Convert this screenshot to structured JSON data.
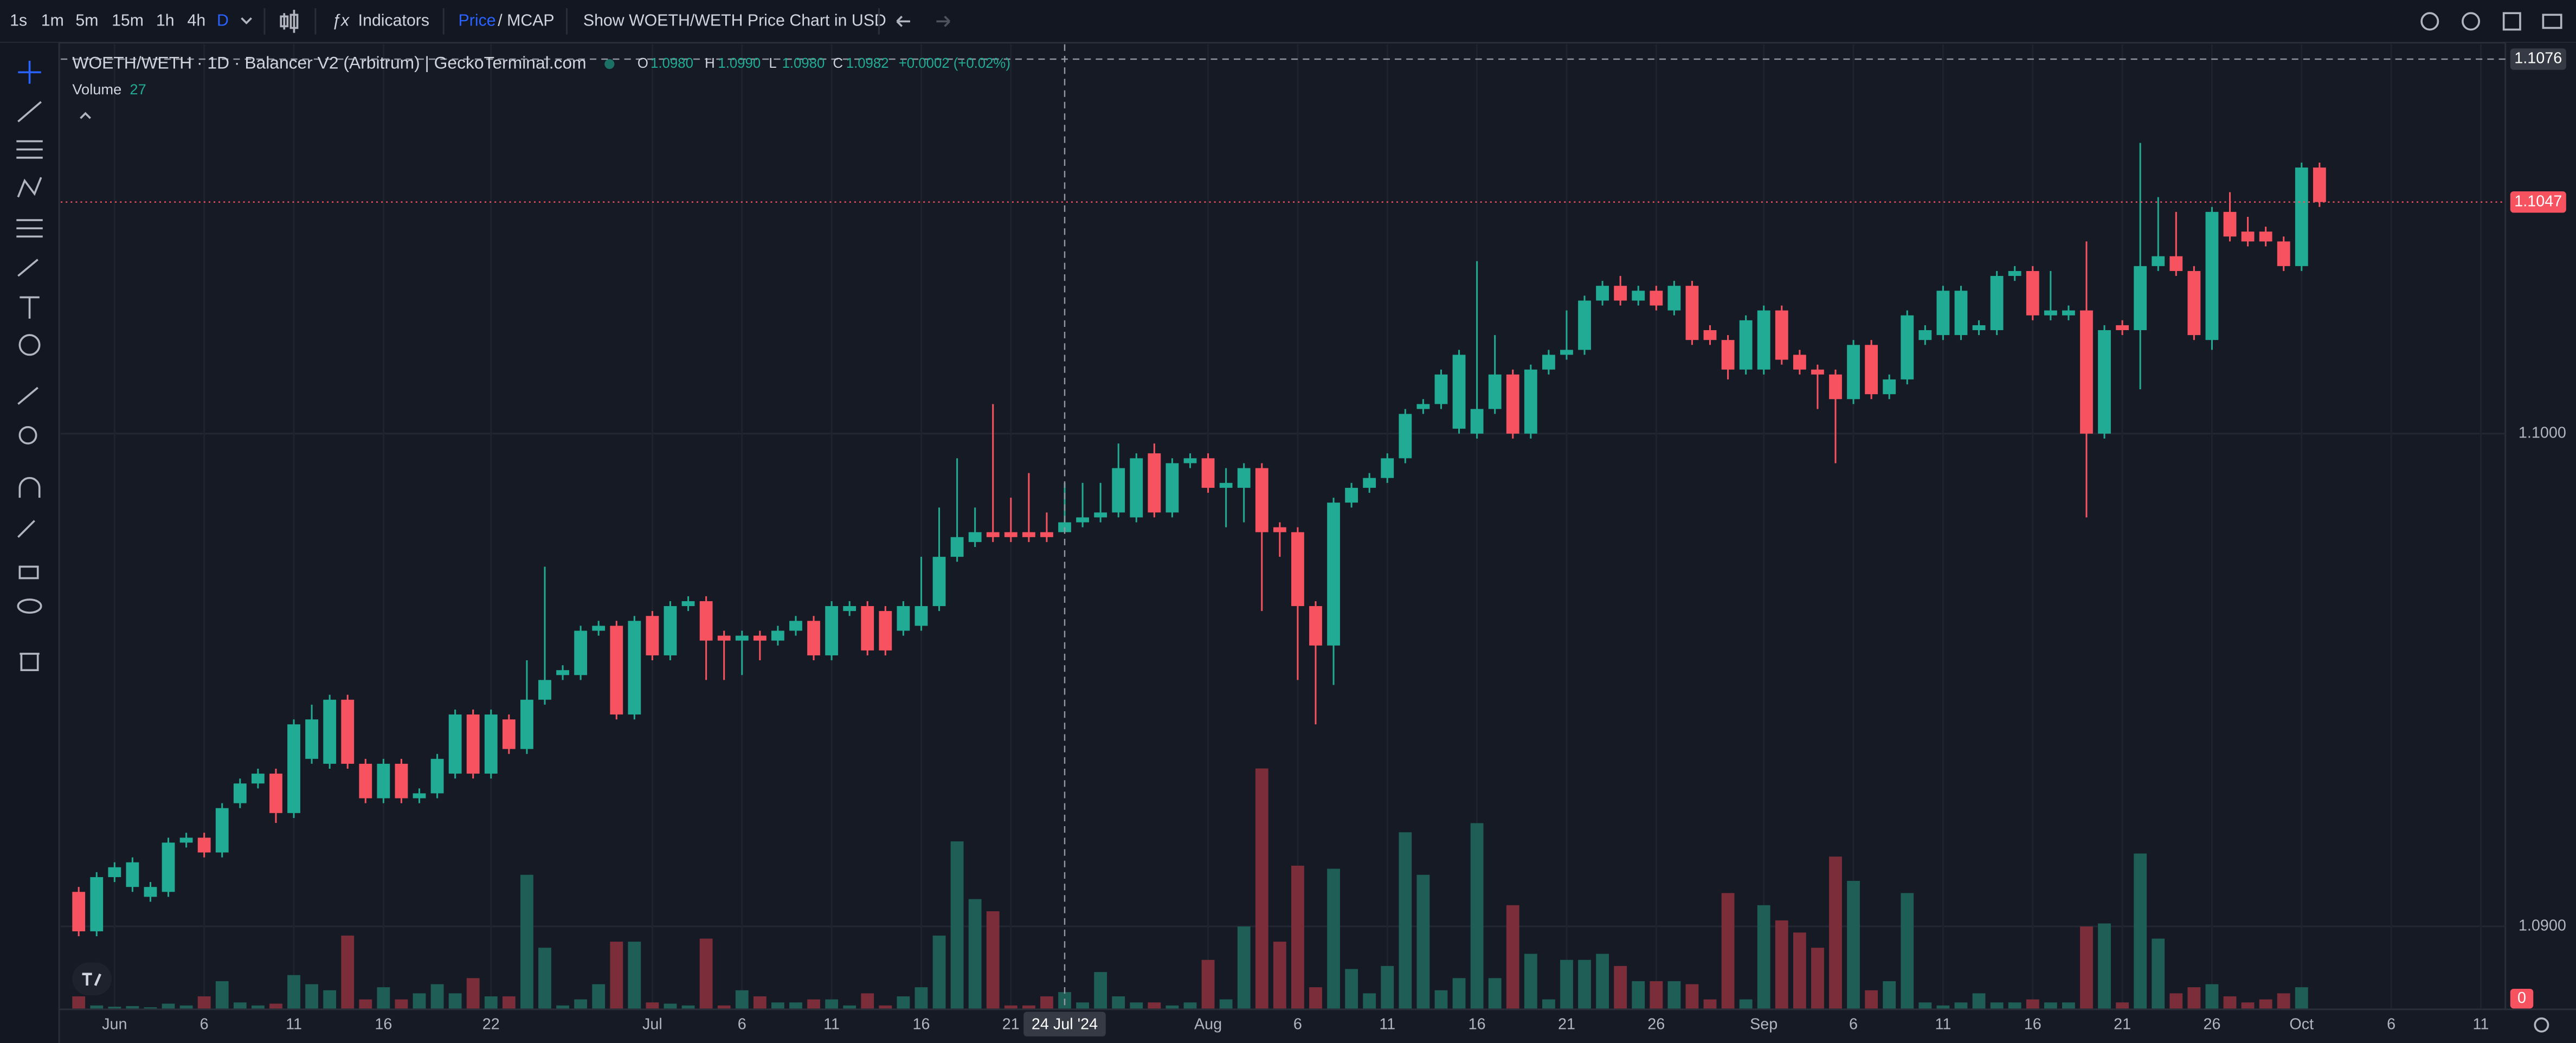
{
  "toolbar": {
    "intervals": [
      "1s",
      "1m",
      "5m",
      "15m",
      "1h",
      "4h",
      "D"
    ],
    "indicators": "Indicators",
    "price_mode": [
      "Price",
      "/ MCAP"
    ],
    "usd_toggle": "Show WOETH/WETH Price Chart in USD"
  },
  "chart_data": {
    "type": "candlestick",
    "title": "WOETH/WETH · 1D · Balancer V2 (Arbitrum) | GeckoTerminal.com",
    "volume_name": "Volume",
    "up_color": "#22ab94",
    "down_color": "#f7525f",
    "volume_up_color": "#1e5e57",
    "volume_down_color": "#7b2e39",
    "grid": true,
    "x": [
      "2024-05-30",
      "2024-05-31",
      "2024-06-01",
      "2024-06-02",
      "2024-06-03",
      "2024-06-04",
      "2024-06-05",
      "2024-06-06",
      "2024-06-07",
      "2024-06-08",
      "2024-06-09",
      "2024-06-10",
      "2024-06-11",
      "2024-06-12",
      "2024-06-13",
      "2024-06-14",
      "2024-06-15",
      "2024-06-16",
      "2024-06-17",
      "2024-06-18",
      "2024-06-19",
      "2024-06-20",
      "2024-06-21",
      "2024-06-22",
      "2024-06-23",
      "2024-06-24",
      "2024-06-25",
      "2024-06-26",
      "2024-06-27",
      "2024-06-28",
      "2024-06-29",
      "2024-06-30",
      "2024-07-01",
      "2024-07-02",
      "2024-07-03",
      "2024-07-04",
      "2024-07-05",
      "2024-07-06",
      "2024-07-07",
      "2024-07-08",
      "2024-07-09",
      "2024-07-10",
      "2024-07-11",
      "2024-07-12",
      "2024-07-13",
      "2024-07-14",
      "2024-07-15",
      "2024-07-16",
      "2024-07-17",
      "2024-07-18",
      "2024-07-19",
      "2024-07-20",
      "2024-07-21",
      "2024-07-22",
      "2024-07-23",
      "2024-07-24",
      "2024-07-25",
      "2024-07-26",
      "2024-07-27",
      "2024-07-28",
      "2024-07-29",
      "2024-07-30",
      "2024-07-31",
      "2024-08-01",
      "2024-08-02",
      "2024-08-03",
      "2024-08-04",
      "2024-08-05",
      "2024-08-06",
      "2024-08-07",
      "2024-08-08",
      "2024-08-09",
      "2024-08-10",
      "2024-08-11",
      "2024-08-12",
      "2024-08-13",
      "2024-08-14",
      "2024-08-15",
      "2024-08-16",
      "2024-08-17",
      "2024-08-18",
      "2024-08-19",
      "2024-08-20",
      "2024-08-21",
      "2024-08-22",
      "2024-08-23",
      "2024-08-24",
      "2024-08-25",
      "2024-08-26",
      "2024-08-27",
      "2024-08-28",
      "2024-08-29",
      "2024-08-30",
      "2024-08-31",
      "2024-09-01",
      "2024-09-02",
      "2024-09-03",
      "2024-09-04",
      "2024-09-05",
      "2024-09-06",
      "2024-09-07",
      "2024-09-08",
      "2024-09-09",
      "2024-09-10",
      "2024-09-11",
      "2024-09-12",
      "2024-09-13",
      "2024-09-14",
      "2024-09-15",
      "2024-09-16",
      "2024-09-17",
      "2024-09-18",
      "2024-09-19",
      "2024-09-20",
      "2024-09-21",
      "2024-09-22",
      "2024-09-23",
      "2024-09-24",
      "2024-09-25",
      "2024-09-26",
      "2024-09-27",
      "2024-09-28",
      "2024-09-29",
      "2024-09-30",
      "2024-10-01",
      "2024-10-02"
    ],
    "open": [
      1.0907,
      1.0899,
      1.091,
      1.0908,
      1.0906,
      1.0907,
      1.0917,
      1.0918,
      1.0915,
      1.0925,
      1.0929,
      1.0931,
      1.0923,
      1.0934,
      1.0933,
      1.0946,
      1.0933,
      1.0926,
      1.0933,
      1.0926,
      1.0927,
      1.0931,
      1.0943,
      1.0931,
      1.0942,
      1.0936,
      1.0946,
      1.0951,
      1.0951,
      1.096,
      1.0961,
      1.0943,
      1.0963,
      1.0955,
      1.0965,
      1.0966,
      1.0959,
      1.0958,
      1.0959,
      1.0958,
      1.096,
      1.0962,
      1.0955,
      1.0964,
      1.0965,
      1.0964,
      1.096,
      1.0961,
      1.0965,
      1.0975,
      1.0978,
      1.098,
      1.098,
      1.098,
      1.098,
      1.098,
      1.0982,
      1.0983,
      1.0984,
      1.0983,
      1.0996,
      1.0984,
      1.0994,
      1.0995,
      1.0989,
      1.0989,
      1.0993,
      1.0981,
      1.098,
      1.0965,
      1.0957,
      1.0986,
      1.0989,
      1.0991,
      1.0995,
      1.1005,
      1.1006,
      1.1001,
      1.1,
      1.1005,
      1.1012,
      1.1,
      1.1013,
      1.1016,
      1.1017,
      1.1027,
      1.103,
      1.1027,
      1.1029,
      1.1025,
      1.103,
      1.1021,
      1.1019,
      1.1013,
      1.1013,
      1.1025,
      1.1016,
      1.1013,
      1.1012,
      1.1007,
      1.1018,
      1.1008,
      1.1011,
      1.1019,
      1.102,
      1.102,
      1.1021,
      1.1021,
      1.1032,
      1.1033,
      1.1024,
      1.1024,
      1.1025,
      1.1,
      1.1022,
      1.1021,
      1.1034,
      1.1036,
      1.1033,
      1.1019,
      1.1045,
      1.1041,
      1.1041,
      1.1039,
      1.1034,
      1.1054
    ],
    "high": [
      1.0908,
      1.0911,
      1.0913,
      1.0914,
      1.0909,
      1.0918,
      1.0919,
      1.0919,
      1.0925,
      1.093,
      1.0932,
      1.0932,
      1.0942,
      1.0945,
      1.0947,
      1.0947,
      1.0934,
      1.0934,
      1.0934,
      1.0928,
      1.0935,
      1.0944,
      1.0944,
      1.0944,
      1.0943,
      1.0954,
      1.0973,
      1.0953,
      1.0961,
      1.0962,
      1.0962,
      1.0963,
      1.0964,
      1.0966,
      1.0967,
      1.0967,
      1.096,
      1.096,
      1.096,
      1.0961,
      1.0963,
      1.0963,
      1.0966,
      1.0966,
      1.0966,
      1.0965,
      1.0966,
      1.0975,
      1.0985,
      1.0995,
      1.0985,
      1.1006,
      1.0987,
      1.0992,
      1.0984,
      1.099,
      1.099,
      1.099,
      1.0998,
      1.0996,
      1.0998,
      1.0995,
      1.0996,
      1.0996,
      1.0993,
      1.0994,
      1.0994,
      1.0982,
      1.0981,
      1.0966,
      1.0987,
      1.099,
      1.0992,
      1.0996,
      1.1005,
      1.1007,
      1.1013,
      1.1017,
      1.1035,
      1.102,
      1.1013,
      1.1014,
      1.1017,
      1.1025,
      1.1028,
      1.1031,
      1.1032,
      1.103,
      1.103,
      1.1031,
      1.1031,
      1.1022,
      1.102,
      1.1024,
      1.1026,
      1.1026,
      1.1017,
      1.1014,
      1.1013,
      1.1019,
      1.1019,
      1.1012,
      1.1025,
      1.1022,
      1.103,
      1.103,
      1.1023,
      1.1033,
      1.1034,
      1.1034,
      1.1033,
      1.1026,
      1.1039,
      1.1022,
      1.1023,
      1.1059,
      1.1048,
      1.1045,
      1.1034,
      1.1046,
      1.1049,
      1.1044,
      1.1042,
      1.104,
      1.1055,
      1.1055
    ],
    "low": [
      1.0898,
      1.0898,
      1.0909,
      1.0907,
      1.0905,
      1.0906,
      1.0916,
      1.0914,
      1.0914,
      1.0924,
      1.0928,
      1.0921,
      1.0922,
      1.0933,
      1.0932,
      1.0932,
      1.0925,
      1.0925,
      1.0925,
      1.0925,
      1.0926,
      1.093,
      1.093,
      1.093,
      1.0935,
      1.0935,
      1.0945,
      1.095,
      1.095,
      1.0959,
      1.0942,
      1.0942,
      1.0954,
      1.0954,
      1.0964,
      1.095,
      1.095,
      1.0951,
      1.0954,
      1.0957,
      1.0959,
      1.0954,
      1.0954,
      1.0963,
      1.0955,
      1.0955,
      1.0959,
      1.096,
      1.0964,
      1.0974,
      1.0977,
      1.0978,
      1.0978,
      1.0978,
      1.0978,
      1.098,
      1.0981,
      1.0982,
      1.0983,
      1.0982,
      1.0983,
      1.0983,
      1.0993,
      1.0988,
      1.0981,
      1.0982,
      1.0964,
      1.0975,
      1.095,
      1.0941,
      1.0949,
      1.0985,
      1.0988,
      1.099,
      1.0994,
      1.1004,
      1.1005,
      1.1,
      1.0999,
      1.1004,
      1.0999,
      1.0999,
      1.1012,
      1.1015,
      1.1016,
      1.1026,
      1.1026,
      1.1026,
      1.1025,
      1.1024,
      1.1018,
      1.1018,
      1.1011,
      1.1012,
      1.1012,
      1.1014,
      1.1012,
      1.1005,
      1.0994,
      1.1006,
      1.1007,
      1.1007,
      1.101,
      1.1018,
      1.1019,
      1.1019,
      1.102,
      1.102,
      1.1031,
      1.1023,
      1.1023,
      1.1023,
      1.0983,
      1.0999,
      1.102,
      1.1009,
      1.1033,
      1.1032,
      1.1019,
      1.1017,
      1.1039,
      1.1038,
      1.1038,
      1.1033,
      1.1033,
      1.1046
    ],
    "close": [
      1.0899,
      1.091,
      1.0912,
      1.0913,
      1.0908,
      1.0917,
      1.0918,
      1.0915,
      1.0924,
      1.0929,
      1.0931,
      1.0923,
      1.0941,
      1.0942,
      1.0946,
      1.0933,
      1.0926,
      1.0933,
      1.0926,
      1.0927,
      1.0934,
      1.0943,
      1.0931,
      1.0943,
      1.0936,
      1.0946,
      1.095,
      1.0952,
      1.096,
      1.0961,
      1.0943,
      1.0962,
      1.0955,
      1.0965,
      1.0966,
      1.0958,
      1.0958,
      1.0959,
      1.0958,
      1.096,
      1.0962,
      1.0955,
      1.0965,
      1.0965,
      1.0956,
      1.0956,
      1.0965,
      1.0965,
      1.0975,
      1.0979,
      1.098,
      1.0979,
      1.0979,
      1.0979,
      1.0979,
      1.0982,
      1.0983,
      1.0984,
      1.0993,
      1.0995,
      1.0984,
      1.0994,
      1.0995,
      1.0989,
      1.099,
      1.0993,
      1.098,
      1.098,
      1.0965,
      1.0957,
      1.0986,
      1.0989,
      1.0991,
      1.0995,
      1.1004,
      1.1006,
      1.1012,
      1.1016,
      1.1005,
      1.1012,
      1.1,
      1.1013,
      1.1016,
      1.1017,
      1.1027,
      1.103,
      1.1027,
      1.1029,
      1.1026,
      1.103,
      1.1019,
      1.1019,
      1.1013,
      1.1023,
      1.1025,
      1.1015,
      1.1013,
      1.1012,
      1.1007,
      1.1018,
      1.1008,
      1.1011,
      1.1024,
      1.1021,
      1.1029,
      1.1029,
      1.1022,
      1.1032,
      1.1033,
      1.1024,
      1.1025,
      1.1025,
      1.1,
      1.1021,
      1.1021,
      1.1034,
      1.1036,
      1.1033,
      1.102,
      1.1045,
      1.104,
      1.1039,
      1.1039,
      1.1034,
      1.1054,
      1.1047
    ],
    "volume": [
      20,
      5,
      3,
      4,
      2,
      8,
      5,
      20,
      45,
      10,
      5,
      8,
      55,
      40,
      30,
      120,
      15,
      35,
      15,
      25,
      40,
      25,
      50,
      20,
      20,
      220,
      100,
      5,
      15,
      40,
      110,
      110,
      10,
      8,
      5,
      115,
      5,
      30,
      20,
      10,
      10,
      15,
      15,
      5,
      25,
      5,
      20,
      35,
      120,
      275,
      180,
      160,
      5,
      5,
      20,
      27,
      10,
      60,
      20,
      10,
      10,
      5,
      10,
      80,
      15,
      135,
      395,
      110,
      235,
      35,
      230,
      65,
      25,
      70,
      290,
      220,
      30,
      50,
      305,
      50,
      170,
      90,
      15,
      80,
      80,
      90,
      70,
      45,
      45,
      45,
      40,
      15,
      190,
      15,
      170,
      145,
      125,
      100,
      250,
      210,
      30,
      45,
      190,
      10,
      5,
      10,
      25,
      10,
      10,
      15,
      10,
      10,
      135,
      140,
      10,
      255,
      115,
      25,
      35,
      40,
      20,
      10,
      15,
      25,
      35,
      0
    ],
    "xlim": [
      "2024-05-29",
      "2024-10-12"
    ],
    "ylim": [
      1.0883,
      1.1079
    ],
    "vlim": [
      0,
      600
    ],
    "yticks": [
      {
        "value": 1.1,
        "label": "1.1000"
      },
      {
        "value": 1.09,
        "label": "1.0900"
      }
    ],
    "xticks": [
      {
        "value": "2024-06-01",
        "label": "Jun"
      },
      {
        "value": "2024-06-06",
        "label": "6"
      },
      {
        "value": "2024-06-11",
        "label": "11"
      },
      {
        "value": "2024-06-16",
        "label": "16"
      },
      {
        "value": "2024-06-22",
        "label": "22"
      },
      {
        "value": "2024-07-01",
        "label": "Jul"
      },
      {
        "value": "2024-07-06",
        "label": "6"
      },
      {
        "value": "2024-07-11",
        "label": "11"
      },
      {
        "value": "2024-07-16",
        "label": "16"
      },
      {
        "value": "2024-07-21",
        "label": "21"
      },
      {
        "value": "2024-08-01",
        "label": "Aug"
      },
      {
        "value": "2024-08-06",
        "label": "6"
      },
      {
        "value": "2024-08-11",
        "label": "11"
      },
      {
        "value": "2024-08-16",
        "label": "16"
      },
      {
        "value": "2024-08-21",
        "label": "21"
      },
      {
        "value": "2024-08-26",
        "label": "26"
      },
      {
        "value": "2024-09-01",
        "label": "Sep"
      },
      {
        "value": "2024-09-06",
        "label": "6"
      },
      {
        "value": "2024-09-11",
        "label": "11"
      },
      {
        "value": "2024-09-16",
        "label": "16"
      },
      {
        "value": "2024-09-21",
        "label": "21"
      },
      {
        "value": "2024-09-26",
        "label": "26"
      },
      {
        "value": "2024-10-01",
        "label": "Oct"
      },
      {
        "value": "2024-10-06",
        "label": "6"
      },
      {
        "value": "2024-10-11",
        "label": "11"
      }
    ],
    "last_price": {
      "value": 1.1047,
      "label": "1.1047"
    },
    "crosshair": {
      "x": "2024-07-24",
      "x_label": "24 Jul '24",
      "y": {
        "value": 1.1076,
        "label": "1.1076"
      },
      "ohlc": [
        {
          "name": "O",
          "value": 1.098,
          "label": "1.0980"
        },
        {
          "name": "H",
          "value": 1.099,
          "label": "1.0990"
        },
        {
          "name": "L",
          "value": 1.098,
          "label": "1.0980"
        },
        {
          "name": "C",
          "value": 1.0982,
          "label": "1.0982"
        }
      ],
      "change": "+0.0002 (+0.02%)"
    }
  }
}
